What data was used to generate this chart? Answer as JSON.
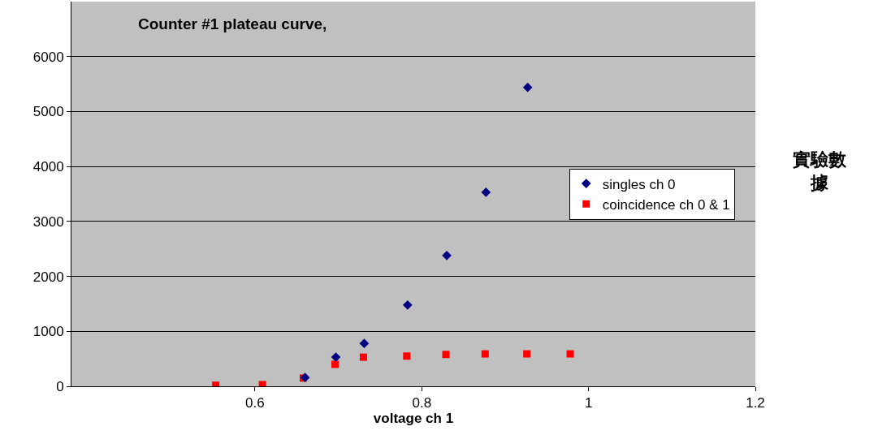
{
  "chart_data": {
    "type": "scatter",
    "title": "Counter #1 plateau curve,",
    "xlabel": "voltage ch 1",
    "annotations": [
      "實驗數據"
    ],
    "series": [
      {
        "name": "singles ch 0",
        "color": "#000080",
        "marker": "diamond",
        "x": [
          0.66,
          0.697,
          0.731,
          0.783,
          0.83,
          0.877,
          0.927
        ],
        "values": [
          160,
          530,
          780,
          1480,
          2380,
          3530,
          5440
        ]
      },
      {
        "name": "coincidence ch 0 & 1",
        "color": "#ff0000",
        "marker": "square",
        "x": [
          0.553,
          0.609,
          0.658,
          0.696,
          0.73,
          0.782,
          0.829,
          0.876,
          0.926,
          0.978
        ],
        "values": [
          20,
          30,
          150,
          400,
          530,
          550,
          580,
          590,
          590,
          590
        ]
      }
    ],
    "xlim": [
      0.38,
      1.2
    ],
    "xticks": [
      0.6,
      0.8,
      1,
      1.2
    ],
    "ylim": [
      0,
      7000
    ],
    "yticks": [
      0,
      1000,
      2000,
      3000,
      4000,
      5000,
      6000
    ],
    "grid": "y",
    "legend": "right"
  }
}
